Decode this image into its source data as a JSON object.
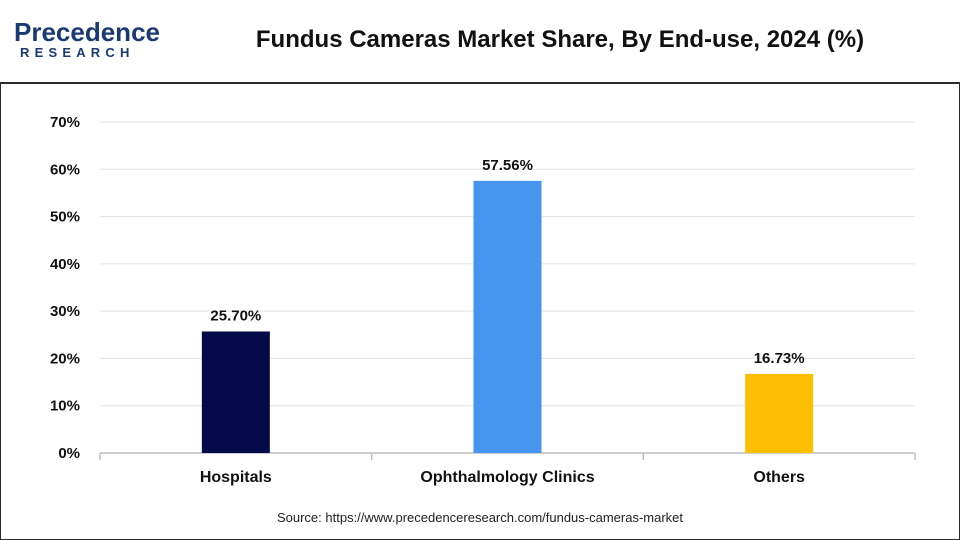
{
  "brand": {
    "logo_top": "Precedence",
    "logo_bottom": "RESEARCH",
    "logo_color": "#1b3a73"
  },
  "title": "Fundus Cameras Market Share, By End-use, 2024 (%)",
  "source": "Source: https://www.precedenceresearch.com/fundus-cameras-market",
  "chart_data": {
    "type": "bar",
    "title": "Fundus Cameras Market Share, By End-use, 2024 (%)",
    "xlabel": "",
    "ylabel": "",
    "ylim": [
      0,
      70
    ],
    "yticks": [
      0,
      10,
      20,
      30,
      40,
      50,
      60,
      70
    ],
    "ytick_labels": [
      "0%",
      "10%",
      "20%",
      "30%",
      "40%",
      "50%",
      "60%",
      "70%"
    ],
    "categories": [
      "Hospitals",
      "Ophthalmology Clinics",
      "Others"
    ],
    "values": [
      25.7,
      57.56,
      16.73
    ],
    "value_labels": [
      "25.70%",
      "57.56%",
      "16.73%"
    ],
    "colors": [
      "#040a4a",
      "#4494f0",
      "#fcbf03"
    ],
    "grid": true,
    "legend": "none"
  }
}
